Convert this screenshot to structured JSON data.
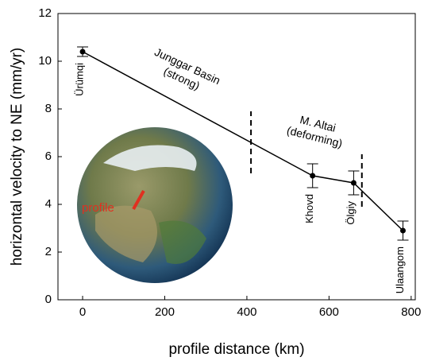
{
  "chart_data": {
    "type": "line",
    "xlabel": "profile distance (km)",
    "ylabel": "horizontal velocity to NE (mm/yr)",
    "xlim": [
      -60,
      810
    ],
    "xticks": [
      0,
      200,
      400,
      600,
      800
    ],
    "ylim": [
      0,
      12
    ],
    "yticks": [
      0,
      2,
      4,
      6,
      8,
      10,
      12
    ],
    "color": "#000000",
    "x": [
      0,
      560,
      660,
      780
    ],
    "values": [
      10.4,
      5.2,
      4.9,
      2.9
    ],
    "errors": [
      0.2,
      0.5,
      0.5,
      0.4
    ],
    "point_labels": [
      "Ürümqi",
      "Khovd",
      "Ölgiy",
      "Ulaangom"
    ],
    "annotations": [
      {
        "lines": [
          "Junggar Basin",
          "(strong)"
        ]
      },
      {
        "lines": [
          "M. Altai",
          "(deforming)"
        ]
      }
    ],
    "dividers": [
      {
        "x": 410,
        "ymin": 5.3,
        "ymax": 7.9
      },
      {
        "x": 680,
        "ymin": 3.9,
        "ymax": 6.1
      }
    ],
    "inset_label": "profile"
  }
}
